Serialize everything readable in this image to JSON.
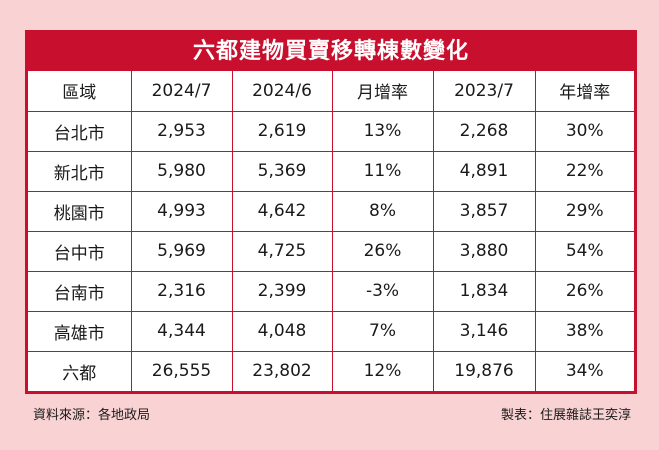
{
  "title": "六都建物買賣移轉棟數變化",
  "headers": [
    "區域",
    "2024/7",
    "2024/6",
    "月增率",
    "2023/7",
    "年增率"
  ],
  "rows": [
    [
      "台北市",
      "2,953",
      "2,619",
      "13%",
      "2,268",
      "30%"
    ],
    [
      "新北市",
      "5,980",
      "5,369",
      "11%",
      "4,891",
      "22%"
    ],
    [
      "桃園市",
      "4,993",
      "4,642",
      "8%",
      "3,857",
      "29%"
    ],
    [
      "台中市",
      "5,969",
      "4,725",
      "26%",
      "3,880",
      "54%"
    ],
    [
      "台南市",
      "2,316",
      "2,399",
      "-3%",
      "1,834",
      "26%"
    ],
    [
      "高雄市",
      "4,344",
      "4,048",
      "7%",
      "3,146",
      "38%"
    ],
    [
      "六都",
      "26,555",
      "23,802",
      "12%",
      "19,876",
      "34%"
    ]
  ],
  "footer": {
    "source": "資料來源：各地政局",
    "credit": "製表：住展雜誌王奕淳"
  },
  "colors": {
    "accent": "#c8102e",
    "background": "#f9d3d3"
  }
}
